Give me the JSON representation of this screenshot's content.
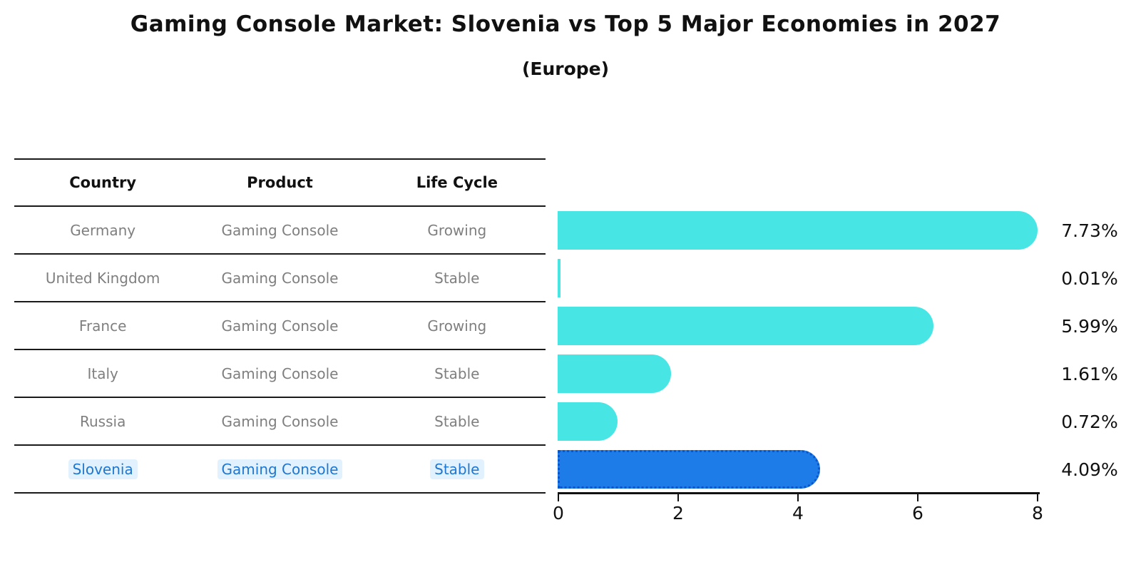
{
  "title": "Gaming Console Market: Slovenia vs Top 5 Major Economies in 2027",
  "subtitle": "(Europe)",
  "table": {
    "columns": [
      "Country",
      "Product",
      "Life Cycle"
    ],
    "rows": [
      {
        "country": "Germany",
        "product": "Gaming Console",
        "life_cycle": "Growing",
        "highlight": false
      },
      {
        "country": "United Kingdom",
        "product": "Gaming Console",
        "life_cycle": "Stable",
        "highlight": false
      },
      {
        "country": "France",
        "product": "Gaming Console",
        "life_cycle": "Growing",
        "highlight": false
      },
      {
        "country": "Italy",
        "product": "Gaming Console",
        "life_cycle": "Stable",
        "highlight": false
      },
      {
        "country": "Russia",
        "product": "Gaming Console",
        "life_cycle": "Stable",
        "highlight": false
      },
      {
        "country": "Slovenia",
        "product": "Gaming Console",
        "life_cycle": "Stable",
        "highlight": true
      }
    ]
  },
  "chart_data": {
    "type": "bar",
    "orientation": "horizontal",
    "categories": [
      "Germany",
      "United Kingdom",
      "France",
      "Italy",
      "Russia",
      "Slovenia"
    ],
    "values": [
      7.73,
      0.01,
      5.99,
      1.61,
      0.72,
      4.09
    ],
    "value_labels": [
      "7.73%",
      "0.01%",
      "5.99%",
      "1.61%",
      "0.72%",
      "4.09%"
    ],
    "xlim": [
      0,
      8
    ],
    "x_ticks": [
      "0",
      "2",
      "4",
      "6",
      "8"
    ],
    "grid": false,
    "legend": false,
    "highlight_index": 5,
    "bar_color": "#48e5e5",
    "highlight_bar_color": "#1e7ce8",
    "highlight_border_color": "#0a57cc",
    "highlight_text_color": "#1f77cf",
    "muted_text_color": "#7f7f7f"
  }
}
